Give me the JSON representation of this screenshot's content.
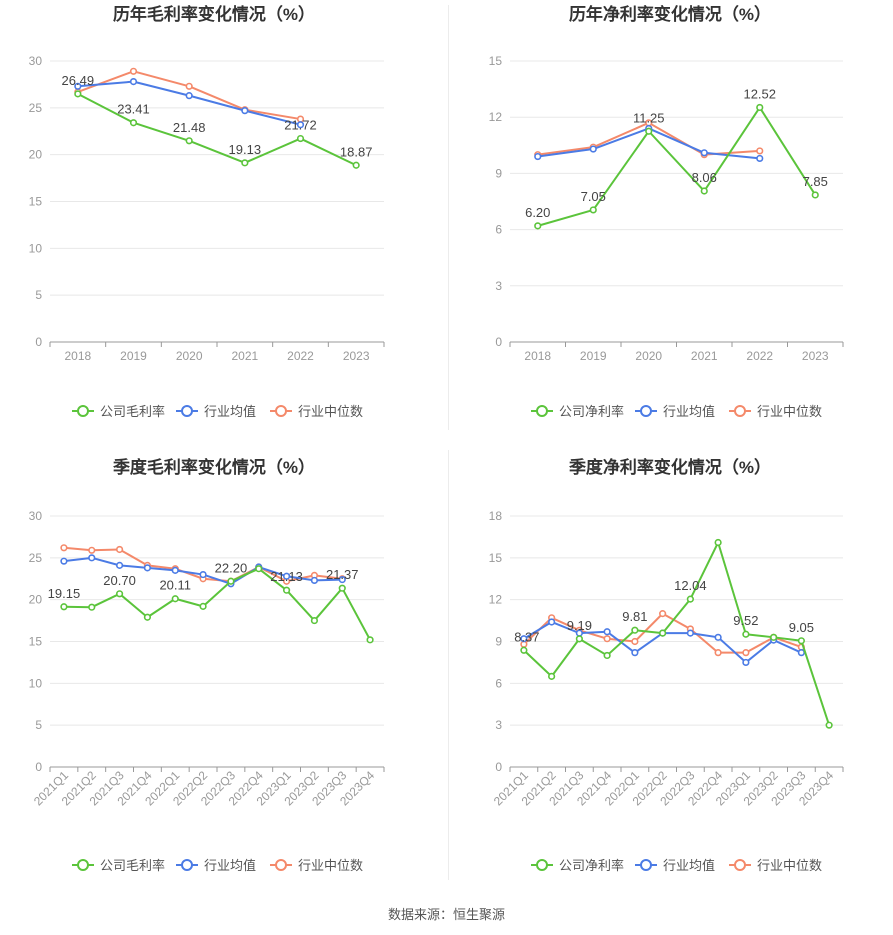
{
  "colors": {
    "company": "#5bc43b",
    "avg": "#4b7be5",
    "median": "#f4896a",
    "grid": "#e8e8e8",
    "axis": "#999999"
  },
  "legend_labels": [
    "",
    "行业均值",
    "行业中位数"
  ],
  "source_text": "数据来源：恒生聚源",
  "chart_data": [
    {
      "type": "line",
      "title": "历年毛利率变化情况（%）",
      "x": [
        "2018",
        "2019",
        "2020",
        "2021",
        "2022",
        "2023"
      ],
      "ylim": [
        0,
        30
      ],
      "yticks": [
        0,
        5,
        10,
        15,
        20,
        25,
        30
      ],
      "grid": true,
      "legend": "bottom",
      "series": [
        {
          "name": "公司毛利率",
          "role": "company",
          "values": [
            26.49,
            23.41,
            21.48,
            19.13,
            21.72,
            18.87
          ]
        },
        {
          "name": "行业均值",
          "role": "avg",
          "values": [
            27.3,
            27.8,
            26.3,
            24.7,
            23.2,
            null
          ]
        },
        {
          "name": "行业中位数",
          "role": "median",
          "values": [
            26.7,
            28.9,
            27.3,
            24.8,
            23.8,
            null
          ]
        }
      ],
      "data_labels": [
        "26.49",
        "23.41",
        "21.48",
        "19.13",
        "21.72",
        "18.87"
      ]
    },
    {
      "type": "line",
      "title": "历年净利率变化情况（%）",
      "x": [
        "2018",
        "2019",
        "2020",
        "2021",
        "2022",
        "2023"
      ],
      "ylim": [
        0,
        15
      ],
      "yticks": [
        0,
        3,
        6,
        9,
        12,
        15
      ],
      "grid": true,
      "legend": "bottom",
      "series": [
        {
          "name": "公司净利率",
          "role": "company",
          "values": [
            6.2,
            7.05,
            11.25,
            8.06,
            12.52,
            7.85
          ]
        },
        {
          "name": "行业均值",
          "role": "avg",
          "values": [
            9.9,
            10.3,
            11.4,
            10.1,
            9.8,
            null
          ]
        },
        {
          "name": "行业中位数",
          "role": "median",
          "values": [
            10.0,
            10.4,
            11.7,
            10.0,
            10.2,
            null
          ]
        }
      ],
      "data_labels": [
        "6.20",
        "7.05",
        "11.25",
        "8.06",
        "12.52",
        "7.85"
      ]
    },
    {
      "type": "line",
      "title": "季度毛利率变化情况（%）",
      "x": [
        "2021Q1",
        "2021Q2",
        "2021Q3",
        "2021Q4",
        "2022Q1",
        "2022Q2",
        "2022Q3",
        "2022Q4",
        "2023Q1",
        "2023Q2",
        "2023Q3",
        "2023Q4"
      ],
      "ylim": [
        0,
        30
      ],
      "yticks": [
        0,
        5,
        10,
        15,
        20,
        25,
        30
      ],
      "grid": true,
      "legend": "bottom",
      "series": [
        {
          "name": "公司毛利率",
          "role": "company",
          "values": [
            19.15,
            19.1,
            20.7,
            17.9,
            20.11,
            19.2,
            22.2,
            23.7,
            21.13,
            17.5,
            21.37,
            15.2
          ]
        },
        {
          "name": "行业均值",
          "role": "avg",
          "values": [
            24.6,
            25.0,
            24.1,
            23.8,
            23.5,
            23.0,
            21.9,
            23.9,
            22.8,
            22.3,
            22.4,
            null
          ]
        },
        {
          "name": "行业中位数",
          "role": "median",
          "values": [
            26.2,
            25.9,
            26.0,
            24.1,
            23.7,
            22.5,
            22.2,
            23.9,
            22.2,
            22.9,
            22.5,
            null
          ]
        }
      ],
      "data_labels": [
        "19.15",
        "",
        "20.70",
        "",
        "20.11",
        "",
        "22.20",
        "",
        "21.13",
        "",
        "21.37",
        ""
      ]
    },
    {
      "type": "line",
      "title": "季度净利率变化情况（%）",
      "x": [
        "2021Q1",
        "2021Q2",
        "2021Q3",
        "2021Q4",
        "2022Q1",
        "2022Q2",
        "2022Q3",
        "2022Q4",
        "2023Q1",
        "2023Q2",
        "2023Q3",
        "2023Q4"
      ],
      "ylim": [
        0,
        18
      ],
      "yticks": [
        0,
        3,
        6,
        9,
        12,
        15,
        18
      ],
      "grid": true,
      "legend": "bottom",
      "series": [
        {
          "name": "公司净利率",
          "role": "company",
          "values": [
            8.37,
            6.5,
            9.19,
            8.0,
            9.81,
            9.6,
            12.04,
            16.1,
            9.52,
            9.3,
            9.05,
            3.0
          ]
        },
        {
          "name": "行业均值",
          "role": "avg",
          "values": [
            9.2,
            10.4,
            9.6,
            9.7,
            8.2,
            9.6,
            9.6,
            9.3,
            7.5,
            9.1,
            8.2,
            null
          ]
        },
        {
          "name": "行业中位数",
          "role": "median",
          "values": [
            8.8,
            10.7,
            9.8,
            9.2,
            9.0,
            11.0,
            9.9,
            8.2,
            8.2,
            9.3,
            8.6,
            null
          ]
        }
      ],
      "data_labels": [
        "8.37",
        "",
        "9.19",
        "",
        "9.81",
        "",
        "12.04",
        "",
        "9.52",
        "",
        "9.05",
        ""
      ]
    }
  ]
}
